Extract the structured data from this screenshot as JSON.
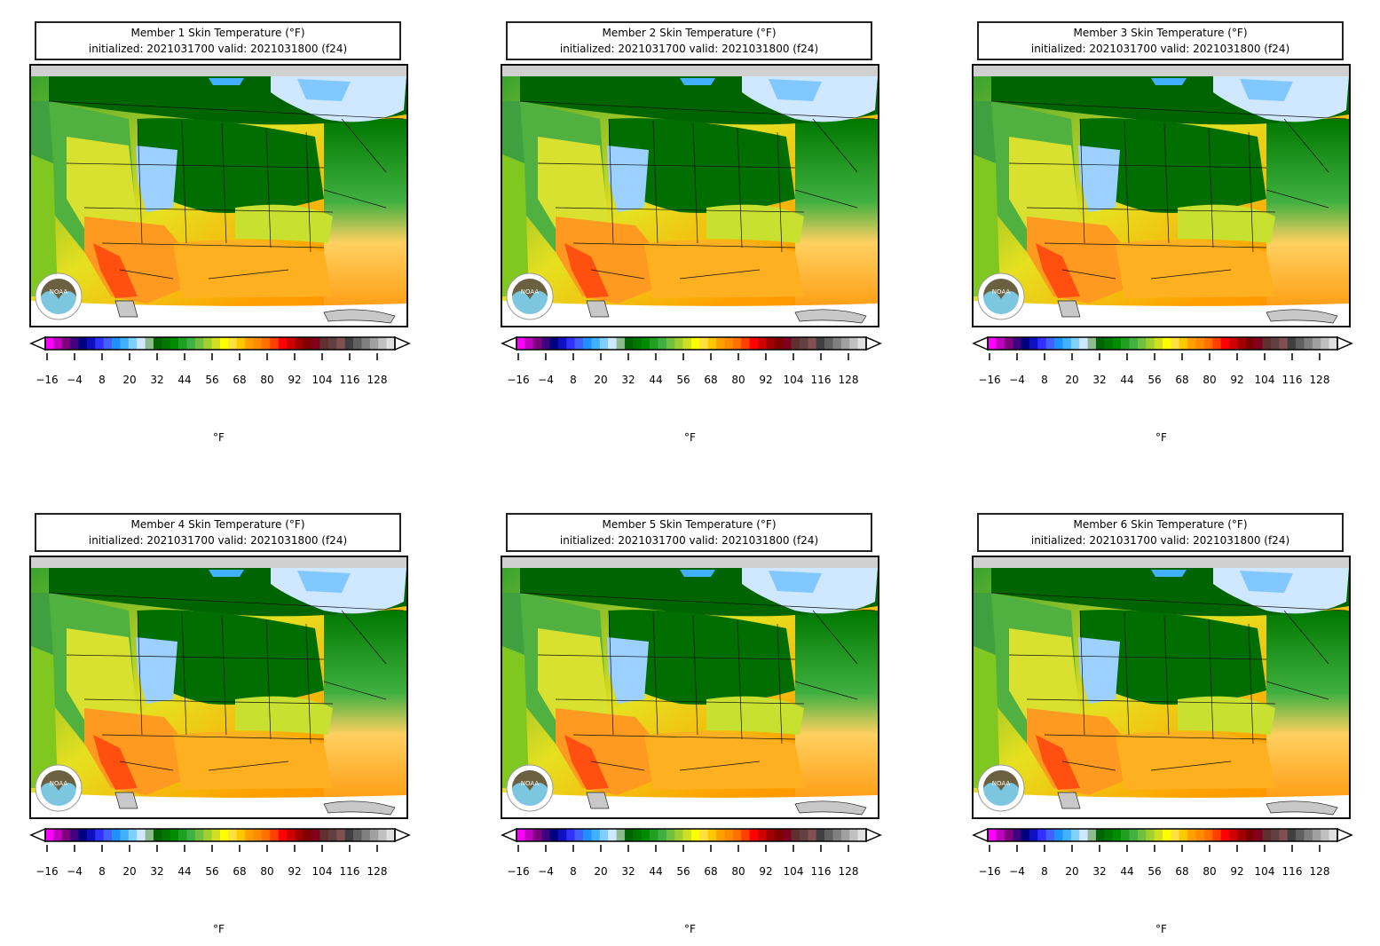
{
  "panels": [
    {
      "title": "Member 1 Skin Temperature (°F)",
      "subtitle": "initialized: 2021031700 valid: 2021031800 (f24)"
    },
    {
      "title": "Member 2 Skin Temperature (°F)",
      "subtitle": "initialized: 2021031700 valid: 2021031800 (f24)"
    },
    {
      "title": "Member 3 Skin Temperature (°F)",
      "subtitle": "initialized: 2021031700 valid: 2021031800 (f24)"
    },
    {
      "title": "Member 4 Skin Temperature (°F)",
      "subtitle": "initialized: 2021031700 valid: 2021031800 (f24)"
    },
    {
      "title": "Member 5 Skin Temperature (°F)",
      "subtitle": "initialized: 2021031700 valid: 2021031800 (f24)"
    },
    {
      "title": "Member 6 Skin Temperature (°F)",
      "subtitle": "initialized: 2021031700 valid: 2021031800 (f24)"
    }
  ],
  "colorbar": {
    "tick_labels": [
      "−16",
      "−4",
      "8",
      "20",
      "32",
      "44",
      "56",
      "68",
      "80",
      "92",
      "104",
      "116",
      "128"
    ],
    "unit": "°F",
    "colors": [
      "#ff00ff",
      "#c000c0",
      "#800080",
      "#400080",
      "#000080",
      "#1010c0",
      "#3030ff",
      "#4060ff",
      "#2090ff",
      "#40b0ff",
      "#80d0ff",
      "#d0e8ff",
      "#8fbc8f",
      "#006400",
      "#007800",
      "#008c00",
      "#20a020",
      "#40b040",
      "#70c040",
      "#a0d030",
      "#d0e020",
      "#ffff00",
      "#ffe040",
      "#ffc800",
      "#ffa000",
      "#ff8c00",
      "#ff7000",
      "#ff4000",
      "#ff0000",
      "#d00000",
      "#a00000",
      "#800000",
      "#800020",
      "#603030",
      "#604040",
      "#805050",
      "#404040",
      "#606060",
      "#808080",
      "#a0a0a0",
      "#c0c0c0",
      "#e0e0e0"
    ]
  },
  "logo_text": "NOAA"
}
